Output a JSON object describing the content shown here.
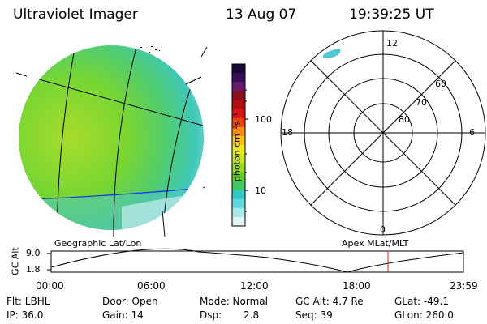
{
  "header": {
    "title": "Ultraviolet Imager",
    "date": "13 Aug 07",
    "time": "19:39:25 UT"
  },
  "colorbar": {
    "unit_label": "photon cm⁻²s⁻¹",
    "ticks": [
      "100",
      "10"
    ],
    "scale": "log",
    "colors": [
      "#1a0a3a",
      "#3a0f5a",
      "#6a1a6a",
      "#8a1020",
      "#b01010",
      "#d81818",
      "#f04010",
      "#f88a10",
      "#f8c010",
      "#e8e820",
      "#c8e820",
      "#9ad81e",
      "#60d020",
      "#40c860",
      "#30c8c0",
      "#60d8e0",
      "#a8e8e8",
      "#e0f4f4"
    ]
  },
  "geo_panel": {
    "label": "Geographic Lat/Lon"
  },
  "polar_panel": {
    "label": "Apex MLat/MLT",
    "mlt_labels": {
      "top": "12",
      "left": "18",
      "right": "6",
      "bottom": "0"
    },
    "lat_labels": [
      "60",
      "70",
      "80"
    ]
  },
  "altitude_plot": {
    "ylabel": "GC Alt",
    "yticks": [
      "9.0",
      "1.8"
    ],
    "xticks": [
      "00:00",
      "06:00",
      "12:00",
      "18:00",
      "23:59"
    ],
    "current_marker_time": "19:39"
  },
  "info": {
    "flt": "Flt: LBHL",
    "ip": "IP: 36.0",
    "door": "Door: Open",
    "gain": "Gain: 14",
    "mode": "Mode: Normal",
    "dsp_label": "Dsp:",
    "dsp_value": "2.8",
    "gc_alt": "GC Alt: 4.7 Re",
    "seq": "Seq: 39",
    "glat": "GLat: -49.1",
    "glon": "GLon: 260.0"
  }
}
